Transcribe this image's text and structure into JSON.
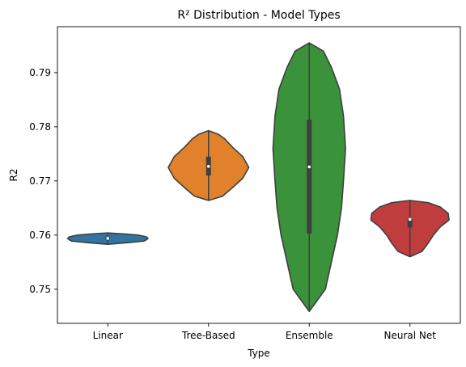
{
  "chart_data": {
    "type": "violin",
    "title": "R² Distribution - Model Types",
    "xlabel": "Type",
    "ylabel": "R2",
    "ylim": [
      0.7437,
      0.7985
    ],
    "yticks": [
      0.75,
      0.76,
      0.77,
      0.78,
      0.79
    ],
    "ytick_labels": [
      "0.75",
      "0.76",
      "0.77",
      "0.78",
      "0.79"
    ],
    "grid": false,
    "categories": [
      "Linear",
      "Tree-Based",
      "Ensemble",
      "Neural Net"
    ],
    "violins": [
      {
        "name": "Linear",
        "color": "#3274a1",
        "min": 0.7583,
        "max": 0.7604,
        "q1": 0.7592,
        "median": 0.7594,
        "q3": 0.7597,
        "profile": [
          [
            0.7583,
            0.0
          ],
          [
            0.7586,
            0.5
          ],
          [
            0.7589,
            0.9
          ],
          [
            0.7592,
            0.97
          ],
          [
            0.7594,
            1.0
          ],
          [
            0.7597,
            0.95
          ],
          [
            0.76,
            0.75
          ],
          [
            0.7602,
            0.45
          ],
          [
            0.7604,
            0.0
          ]
        ]
      },
      {
        "name": "Tree-Based",
        "color": "#e1812c",
        "min": 0.7664,
        "max": 0.7793,
        "q1": 0.771,
        "median": 0.7727,
        "q3": 0.7745,
        "profile": [
          [
            0.7664,
            0.0
          ],
          [
            0.7672,
            0.35
          ],
          [
            0.7688,
            0.6
          ],
          [
            0.7705,
            0.85
          ],
          [
            0.7725,
            1.0
          ],
          [
            0.7745,
            0.85
          ],
          [
            0.7762,
            0.6
          ],
          [
            0.7778,
            0.4
          ],
          [
            0.7786,
            0.25
          ],
          [
            0.7793,
            0.0
          ]
        ]
      },
      {
        "name": "Ensemble",
        "color": "#3a923a",
        "min": 0.7459,
        "max": 0.7955,
        "q1": 0.7603,
        "median": 0.7726,
        "q3": 0.7813,
        "profile": [
          [
            0.7459,
            0.0
          ],
          [
            0.75,
            0.4
          ],
          [
            0.755,
            0.55
          ],
          [
            0.76,
            0.7
          ],
          [
            0.765,
            0.8
          ],
          [
            0.77,
            0.85
          ],
          [
            0.776,
            0.9
          ],
          [
            0.782,
            0.85
          ],
          [
            0.787,
            0.75
          ],
          [
            0.791,
            0.55
          ],
          [
            0.794,
            0.35
          ],
          [
            0.7955,
            0.0
          ]
        ]
      },
      {
        "name": "Neural Net",
        "color": "#c03d3e",
        "min": 0.756,
        "max": 0.7664,
        "q1": 0.7614,
        "median": 0.7629,
        "q3": 0.763,
        "profile": [
          [
            0.756,
            0.0
          ],
          [
            0.757,
            0.3
          ],
          [
            0.7585,
            0.45
          ],
          [
            0.76,
            0.58
          ],
          [
            0.7615,
            0.75
          ],
          [
            0.7628,
            0.97
          ],
          [
            0.764,
            0.95
          ],
          [
            0.7652,
            0.75
          ],
          [
            0.766,
            0.45
          ],
          [
            0.7664,
            0.0
          ]
        ]
      }
    ]
  }
}
